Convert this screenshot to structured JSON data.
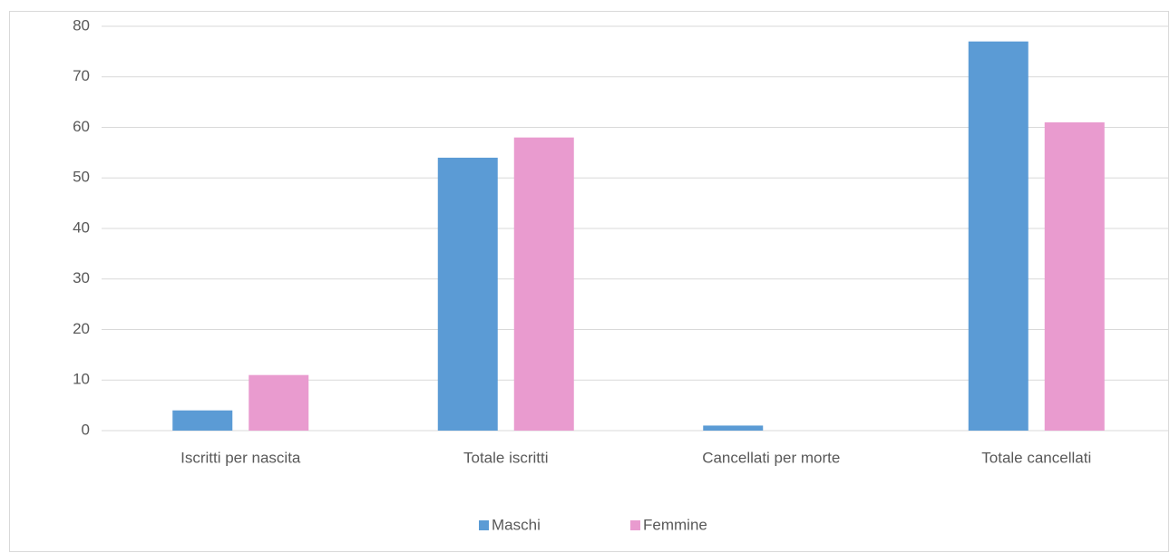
{
  "chart_data": {
    "type": "bar",
    "categories": [
      "Iscritti per nascita",
      "Totale iscritti",
      "Cancellati per morte",
      "Totale cancellati"
    ],
    "series": [
      {
        "name": "Maschi",
        "color": "#5b9bd5",
        "values": [
          4,
          54,
          1,
          77
        ]
      },
      {
        "name": "Femmine",
        "color": "#e99bcf",
        "values": [
          11,
          58,
          0,
          61
        ]
      }
    ],
    "ylim": [
      0,
      80
    ],
    "yticks": [
      0,
      10,
      20,
      30,
      40,
      50,
      60,
      70,
      80
    ],
    "grid": true,
    "legend": "bottom"
  }
}
